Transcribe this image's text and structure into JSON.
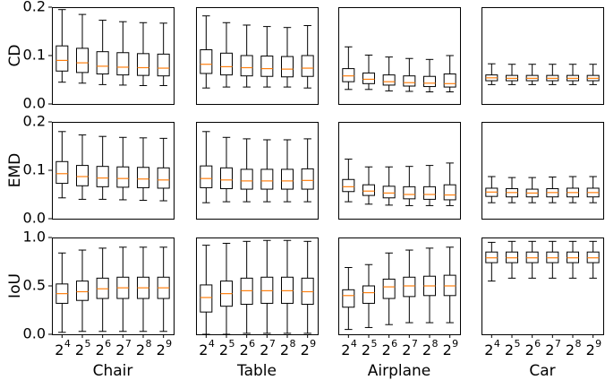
{
  "chart_data": {
    "type": "boxplot",
    "columns": [
      "Chair",
      "Table",
      "Airplane",
      "Car"
    ],
    "x_categories": [
      {
        "base": "2",
        "exp": "4"
      },
      {
        "base": "2",
        "exp": "5"
      },
      {
        "base": "2",
        "exp": "6"
      },
      {
        "base": "2",
        "exp": "7"
      },
      {
        "base": "2",
        "exp": "8"
      },
      {
        "base": "2",
        "exp": "9"
      }
    ],
    "colors": {
      "median": "#ff7f0e",
      "box": "#000000"
    },
    "rows": [
      {
        "metric": "CD",
        "ylim": [
          0,
          0.2
        ],
        "yticks": [
          "0.0",
          "0.1",
          "0.2"
        ],
        "yticks_values": [
          0,
          0.1,
          0.2
        ],
        "panels": [
          {
            "boxes": [
              {
                "whislo": 0.045,
                "q1": 0.068,
                "med": 0.09,
                "q3": 0.12,
                "whishi": 0.195
              },
              {
                "whislo": 0.043,
                "q1": 0.065,
                "med": 0.085,
                "q3": 0.115,
                "whishi": 0.185
              },
              {
                "whislo": 0.04,
                "q1": 0.062,
                "med": 0.078,
                "q3": 0.108,
                "whishi": 0.173
              },
              {
                "whislo": 0.039,
                "q1": 0.06,
                "med": 0.076,
                "q3": 0.106,
                "whishi": 0.17
              },
              {
                "whislo": 0.038,
                "q1": 0.059,
                "med": 0.075,
                "q3": 0.104,
                "whishi": 0.168
              },
              {
                "whislo": 0.038,
                "q1": 0.058,
                "med": 0.074,
                "q3": 0.103,
                "whishi": 0.167
              }
            ]
          },
          {
            "boxes": [
              {
                "whislo": 0.033,
                "q1": 0.063,
                "med": 0.082,
                "q3": 0.112,
                "whishi": 0.182
              },
              {
                "whislo": 0.035,
                "q1": 0.06,
                "med": 0.077,
                "q3": 0.105,
                "whishi": 0.168
              },
              {
                "whislo": 0.035,
                "q1": 0.058,
                "med": 0.075,
                "q3": 0.1,
                "whishi": 0.163
              },
              {
                "whislo": 0.035,
                "q1": 0.057,
                "med": 0.073,
                "q3": 0.099,
                "whishi": 0.16
              },
              {
                "whislo": 0.035,
                "q1": 0.056,
                "med": 0.072,
                "q3": 0.098,
                "whishi": 0.158
              },
              {
                "whislo": 0.033,
                "q1": 0.057,
                "med": 0.074,
                "q3": 0.1,
                "whishi": 0.162
              }
            ]
          },
          {
            "boxes": [
              {
                "whislo": 0.03,
                "q1": 0.046,
                "med": 0.058,
                "q3": 0.073,
                "whishi": 0.118
              },
              {
                "whislo": 0.03,
                "q1": 0.042,
                "med": 0.051,
                "q3": 0.064,
                "whishi": 0.101
              },
              {
                "whislo": 0.027,
                "q1": 0.039,
                "med": 0.046,
                "q3": 0.06,
                "whishi": 0.097
              },
              {
                "whislo": 0.026,
                "q1": 0.037,
                "med": 0.044,
                "q3": 0.058,
                "whishi": 0.094
              },
              {
                "whislo": 0.025,
                "q1": 0.036,
                "med": 0.043,
                "q3": 0.057,
                "whishi": 0.092
              },
              {
                "whislo": 0.025,
                "q1": 0.035,
                "med": 0.042,
                "q3": 0.062,
                "whishi": 0.1
              }
            ]
          },
          {
            "boxes": [
              {
                "whislo": 0.04,
                "q1": 0.048,
                "med": 0.054,
                "q3": 0.06,
                "whishi": 0.083
              },
              {
                "whislo": 0.04,
                "q1": 0.048,
                "med": 0.053,
                "q3": 0.059,
                "whishi": 0.082
              },
              {
                "whislo": 0.04,
                "q1": 0.048,
                "med": 0.053,
                "q3": 0.059,
                "whishi": 0.082
              },
              {
                "whislo": 0.04,
                "q1": 0.048,
                "med": 0.053,
                "q3": 0.059,
                "whishi": 0.082
              },
              {
                "whislo": 0.04,
                "q1": 0.048,
                "med": 0.053,
                "q3": 0.059,
                "whishi": 0.082
              },
              {
                "whislo": 0.04,
                "q1": 0.048,
                "med": 0.053,
                "q3": 0.059,
                "whishi": 0.082
              }
            ]
          }
        ]
      },
      {
        "metric": "EMD",
        "ylim": [
          0,
          0.2
        ],
        "yticks": [
          "0.0",
          "0.1",
          "0.2"
        ],
        "yticks_values": [
          0,
          0.1,
          0.2
        ],
        "panels": [
          {
            "boxes": [
              {
                "whislo": 0.043,
                "q1": 0.073,
                "med": 0.093,
                "q3": 0.118,
                "whishi": 0.18
              },
              {
                "whislo": 0.04,
                "q1": 0.068,
                "med": 0.087,
                "q3": 0.11,
                "whishi": 0.173
              },
              {
                "whislo": 0.04,
                "q1": 0.066,
                "med": 0.084,
                "q3": 0.108,
                "whishi": 0.17
              },
              {
                "whislo": 0.039,
                "q1": 0.065,
                "med": 0.083,
                "q3": 0.107,
                "whishi": 0.168
              },
              {
                "whislo": 0.038,
                "q1": 0.064,
                "med": 0.082,
                "q3": 0.106,
                "whishi": 0.167
              },
              {
                "whislo": 0.037,
                "q1": 0.063,
                "med": 0.08,
                "q3": 0.105,
                "whishi": 0.166
              }
            ]
          },
          {
            "boxes": [
              {
                "whislo": 0.033,
                "q1": 0.064,
                "med": 0.083,
                "q3": 0.109,
                "whishi": 0.18
              },
              {
                "whislo": 0.035,
                "q1": 0.062,
                "med": 0.08,
                "q3": 0.105,
                "whishi": 0.168
              },
              {
                "whislo": 0.035,
                "q1": 0.061,
                "med": 0.078,
                "q3": 0.102,
                "whishi": 0.165
              },
              {
                "whislo": 0.035,
                "q1": 0.061,
                "med": 0.078,
                "q3": 0.102,
                "whishi": 0.163
              },
              {
                "whislo": 0.035,
                "q1": 0.061,
                "med": 0.078,
                "q3": 0.102,
                "whishi": 0.163
              },
              {
                "whislo": 0.035,
                "q1": 0.061,
                "med": 0.079,
                "q3": 0.103,
                "whishi": 0.165
              }
            ]
          },
          {
            "boxes": [
              {
                "whislo": 0.035,
                "q1": 0.056,
                "med": 0.066,
                "q3": 0.081,
                "whishi": 0.123
              },
              {
                "whislo": 0.03,
                "q1": 0.048,
                "med": 0.057,
                "q3": 0.07,
                "whishi": 0.107
              },
              {
                "whislo": 0.028,
                "q1": 0.043,
                "med": 0.053,
                "q3": 0.067,
                "whishi": 0.107
              },
              {
                "whislo": 0.027,
                "q1": 0.041,
                "med": 0.05,
                "q3": 0.066,
                "whishi": 0.108
              },
              {
                "whislo": 0.027,
                "q1": 0.04,
                "med": 0.05,
                "q3": 0.066,
                "whishi": 0.11
              },
              {
                "whislo": 0.027,
                "q1": 0.039,
                "med": 0.049,
                "q3": 0.07,
                "whishi": 0.115
              }
            ]
          },
          {
            "boxes": [
              {
                "whislo": 0.033,
                "q1": 0.046,
                "med": 0.055,
                "q3": 0.063,
                "whishi": 0.087
              },
              {
                "whislo": 0.033,
                "q1": 0.045,
                "med": 0.054,
                "q3": 0.062,
                "whishi": 0.085
              },
              {
                "whislo": 0.033,
                "q1": 0.045,
                "med": 0.053,
                "q3": 0.061,
                "whishi": 0.085
              },
              {
                "whislo": 0.033,
                "q1": 0.045,
                "med": 0.054,
                "q3": 0.062,
                "whishi": 0.086
              },
              {
                "whislo": 0.033,
                "q1": 0.045,
                "med": 0.054,
                "q3": 0.063,
                "whishi": 0.087
              },
              {
                "whislo": 0.033,
                "q1": 0.045,
                "med": 0.054,
                "q3": 0.063,
                "whishi": 0.087
              }
            ]
          }
        ]
      },
      {
        "metric": "IoU",
        "ylim": [
          0,
          1
        ],
        "yticks": [
          "0.0",
          "0.5",
          "1.0"
        ],
        "yticks_values": [
          0,
          0.5,
          1
        ],
        "panels": [
          {
            "boxes": [
              {
                "whislo": 0.02,
                "q1": 0.32,
                "med": 0.42,
                "q3": 0.52,
                "whishi": 0.84
              },
              {
                "whislo": 0.03,
                "q1": 0.35,
                "med": 0.44,
                "q3": 0.55,
                "whishi": 0.87
              },
              {
                "whislo": 0.03,
                "q1": 0.37,
                "med": 0.47,
                "q3": 0.58,
                "whishi": 0.89
              },
              {
                "whislo": 0.03,
                "q1": 0.37,
                "med": 0.48,
                "q3": 0.59,
                "whishi": 0.9
              },
              {
                "whislo": 0.03,
                "q1": 0.37,
                "med": 0.48,
                "q3": 0.59,
                "whishi": 0.9
              },
              {
                "whislo": 0.03,
                "q1": 0.37,
                "med": 0.48,
                "q3": 0.59,
                "whishi": 0.9
              }
            ]
          },
          {
            "boxes": [
              {
                "whislo": 0.0,
                "q1": 0.23,
                "med": 0.38,
                "q3": 0.51,
                "whishi": 0.92
              },
              {
                "whislo": 0.0,
                "q1": 0.29,
                "med": 0.42,
                "q3": 0.55,
                "whishi": 0.94
              },
              {
                "whislo": 0.01,
                "q1": 0.31,
                "med": 0.45,
                "q3": 0.58,
                "whishi": 0.96
              },
              {
                "whislo": 0.01,
                "q1": 0.32,
                "med": 0.45,
                "q3": 0.59,
                "whishi": 0.97
              },
              {
                "whislo": 0.01,
                "q1": 0.32,
                "med": 0.45,
                "q3": 0.59,
                "whishi": 0.97
              },
              {
                "whislo": 0.01,
                "q1": 0.31,
                "med": 0.44,
                "q3": 0.58,
                "whishi": 0.96
              }
            ]
          },
          {
            "boxes": [
              {
                "whislo": 0.05,
                "q1": 0.28,
                "med": 0.4,
                "q3": 0.46,
                "whishi": 0.69
              },
              {
                "whislo": 0.07,
                "q1": 0.32,
                "med": 0.43,
                "q3": 0.5,
                "whishi": 0.72
              },
              {
                "whislo": 0.1,
                "q1": 0.37,
                "med": 0.49,
                "q3": 0.57,
                "whishi": 0.84
              },
              {
                "whislo": 0.12,
                "q1": 0.39,
                "med": 0.5,
                "q3": 0.59,
                "whishi": 0.87
              },
              {
                "whislo": 0.12,
                "q1": 0.4,
                "med": 0.5,
                "q3": 0.6,
                "whishi": 0.89
              },
              {
                "whislo": 0.12,
                "q1": 0.4,
                "med": 0.5,
                "q3": 0.61,
                "whishi": 0.9
              }
            ]
          },
          {
            "boxes": [
              {
                "whislo": 0.55,
                "q1": 0.74,
                "med": 0.79,
                "q3": 0.85,
                "whishi": 0.95
              },
              {
                "whislo": 0.58,
                "q1": 0.74,
                "med": 0.79,
                "q3": 0.85,
                "whishi": 0.96
              },
              {
                "whislo": 0.58,
                "q1": 0.74,
                "med": 0.79,
                "q3": 0.85,
                "whishi": 0.96
              },
              {
                "whislo": 0.58,
                "q1": 0.74,
                "med": 0.79,
                "q3": 0.85,
                "whishi": 0.96
              },
              {
                "whislo": 0.58,
                "q1": 0.74,
                "med": 0.79,
                "q3": 0.85,
                "whishi": 0.96
              },
              {
                "whislo": 0.58,
                "q1": 0.74,
                "med": 0.79,
                "q3": 0.85,
                "whishi": 0.96
              }
            ]
          }
        ]
      }
    ]
  }
}
